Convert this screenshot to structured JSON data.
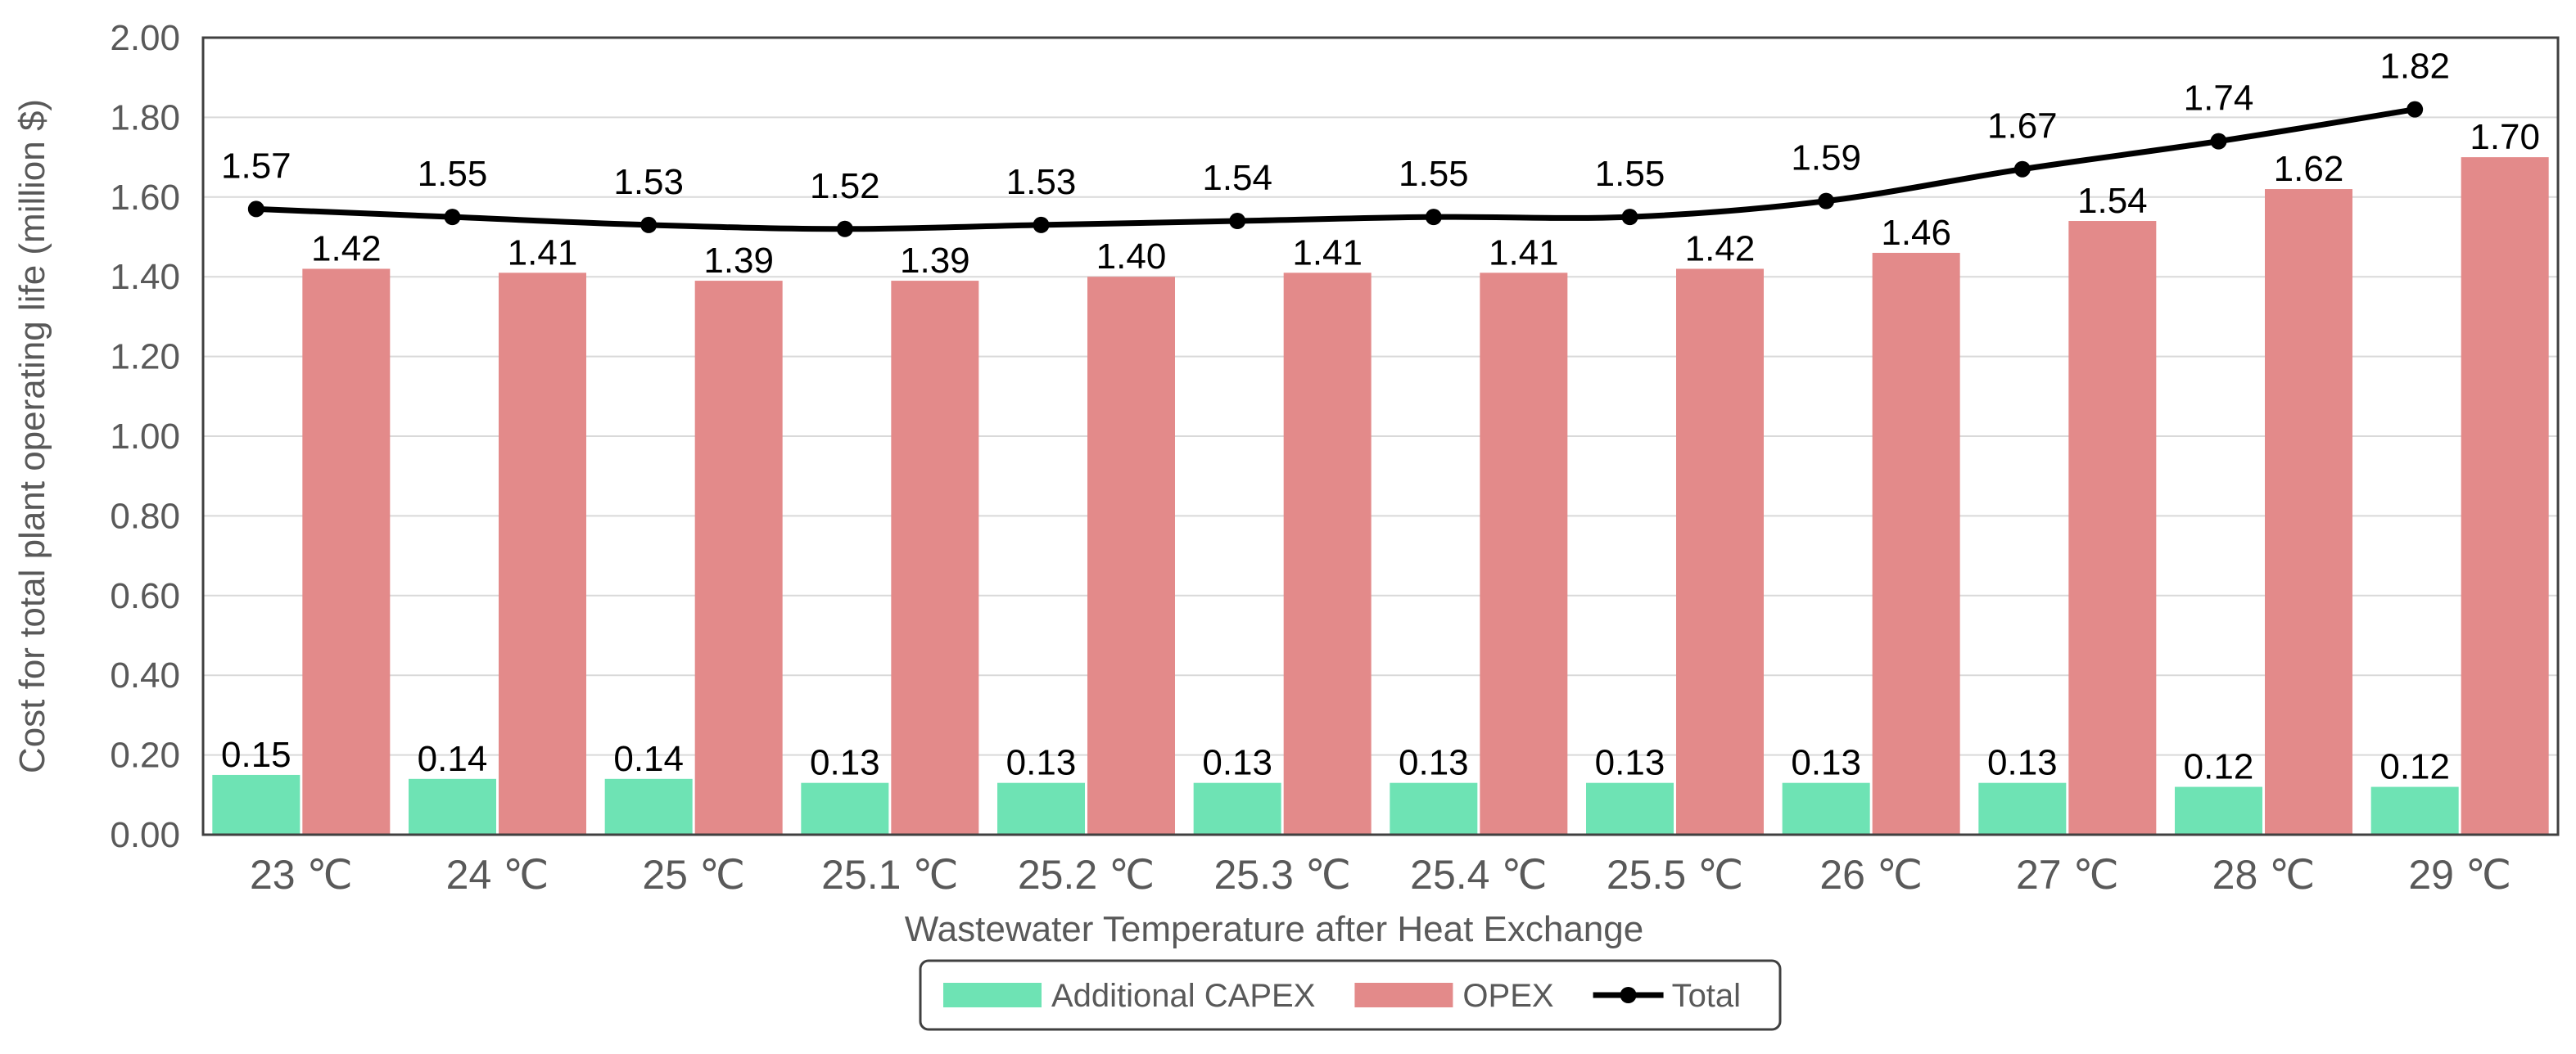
{
  "chart_data": {
    "type": "bar",
    "title": "",
    "xlabel": "Wastewater Temperature after Heat Exchange",
    "ylabel": "Cost for total plant operating life (million $)",
    "ylim": [
      0,
      2.0
    ],
    "ytick_step": 0.2,
    "yticks": [
      "0.00",
      "0.20",
      "0.40",
      "0.60",
      "0.80",
      "1.00",
      "1.20",
      "1.40",
      "1.60",
      "1.80",
      "2.00"
    ],
    "grid": true,
    "legend_position": "bottom",
    "categories": [
      "23 ℃",
      "24 ℃",
      "25 ℃",
      "25.1 ℃",
      "25.2 ℃",
      "25.3 ℃",
      "25.4 ℃",
      "25.5 ℃",
      "26 ℃",
      "27 ℃",
      "28 ℃",
      "29 ℃"
    ],
    "series": [
      {
        "name": "Additional CAPEX",
        "kind": "bar",
        "color": "#6ee3b4",
        "values": [
          0.15,
          0.14,
          0.14,
          0.13,
          0.13,
          0.13,
          0.13,
          0.13,
          0.13,
          0.13,
          0.12,
          0.12
        ],
        "labels": [
          "0.15",
          "0.14",
          "0.14",
          "0.13",
          "0.13",
          "0.13",
          "0.13",
          "0.13",
          "0.13",
          "0.13",
          "0.12",
          "0.12"
        ]
      },
      {
        "name": "OPEX",
        "kind": "bar",
        "color": "#e38a8a",
        "values": [
          1.42,
          1.41,
          1.39,
          1.39,
          1.4,
          1.41,
          1.41,
          1.42,
          1.46,
          1.54,
          1.62,
          1.7
        ],
        "labels": [
          "1.42",
          "1.41",
          "1.39",
          "1.39",
          "1.40",
          "1.41",
          "1.41",
          "1.42",
          "1.46",
          "1.54",
          "1.62",
          "1.70"
        ]
      },
      {
        "name": "Total",
        "kind": "line",
        "color": "#000000",
        "values": [
          1.57,
          1.55,
          1.53,
          1.52,
          1.53,
          1.54,
          1.55,
          1.55,
          1.59,
          1.67,
          1.74,
          1.82
        ],
        "labels": [
          "1.57",
          "1.55",
          "1.53",
          "1.52",
          "1.53",
          "1.54",
          "1.55",
          "1.55",
          "1.59",
          "1.67",
          "1.74",
          "1.82"
        ]
      }
    ]
  }
}
